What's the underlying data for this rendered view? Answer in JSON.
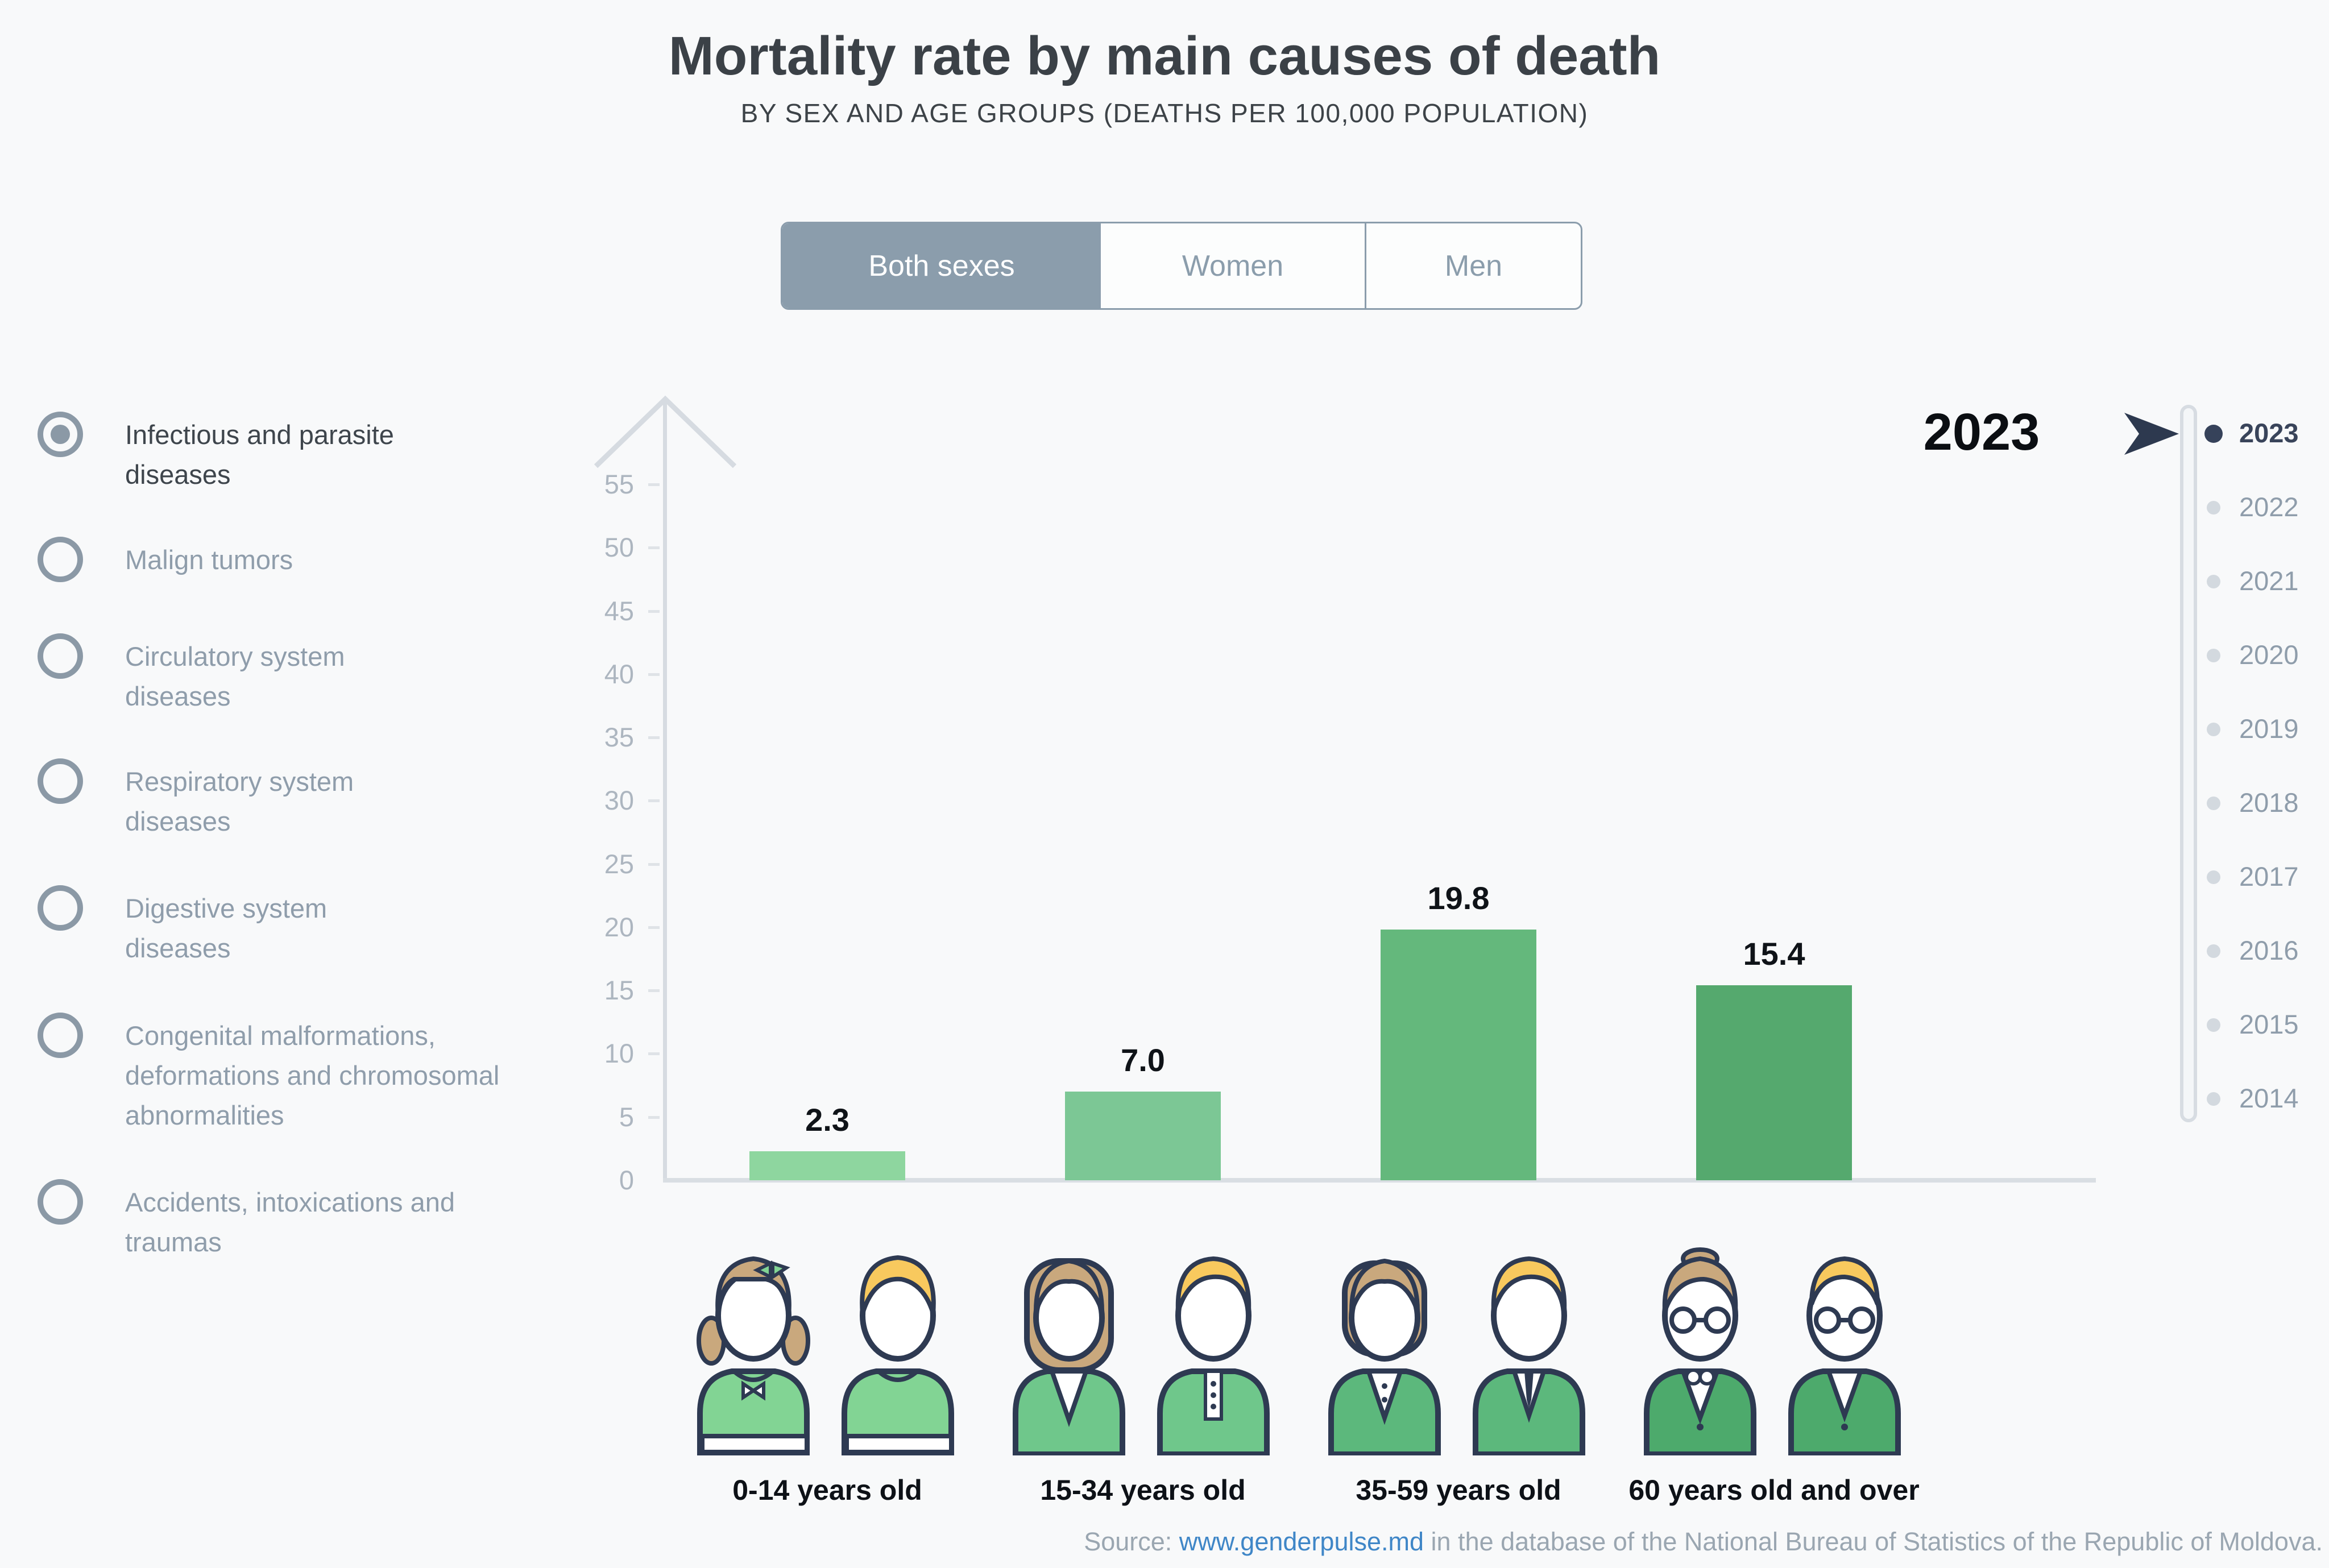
{
  "title": "Mortality rate by main causes of death",
  "subtitle": "BY SEX AND AGE GROUPS (DEATHS PER 100,000 POPULATION)",
  "tabs": [
    {
      "label": "Both sexes",
      "active": true
    },
    {
      "label": "Women",
      "active": false
    },
    {
      "label": "Men",
      "active": false
    }
  ],
  "causes": {
    "items": [
      {
        "label": "Infectious and parasite\ndiseases",
        "selected": true
      },
      {
        "label": "Malign tumors",
        "selected": false
      },
      {
        "label": "Circulatory system\ndiseases",
        "selected": false
      },
      {
        "label": "Respiratory system\ndiseases",
        "selected": false
      },
      {
        "label": "Digestive system\ndiseases",
        "selected": false
      },
      {
        "label": "Congenital malformations,\ndeformations and chromosomal\nabnormalities",
        "selected": false
      },
      {
        "label": "Accidents, intoxications and\ntraumas",
        "selected": false
      }
    ]
  },
  "chart_data": {
    "type": "bar",
    "title": "Mortality rate by main causes of death",
    "subtitle": "BY SEX AND AGE GROUPS (DEATHS PER 100,000 POPULATION)",
    "selected_sex": "Both sexes",
    "selected_cause": "Infectious and parasite diseases",
    "year": "2023",
    "categories": [
      "0-14 years old",
      "15-34 years old",
      "35-59 years old",
      "60 years old and over"
    ],
    "values": [
      2.3,
      7.0,
      19.8,
      15.4
    ],
    "value_labels": [
      "2.3",
      "7.0",
      "19.8",
      "15.4"
    ],
    "ylim": [
      0,
      55
    ],
    "y_ticks": [
      0,
      5,
      10,
      15,
      20,
      25,
      30,
      35,
      40,
      45,
      50,
      55
    ],
    "bar_colors": [
      "#8ed69f",
      "#7cc795",
      "#64b87c",
      "#55a96e"
    ],
    "grid": false,
    "legend": false
  },
  "big_year": "2023",
  "timeline": {
    "active": "2023",
    "years": [
      "2023",
      "2022",
      "2021",
      "2020",
      "2019",
      "2018",
      "2017",
      "2016",
      "2015",
      "2014"
    ]
  },
  "source": {
    "prefix": "Source: ",
    "link": "www.genderpulse.md",
    "suffix": " in the database of the National Bureau of Statistics of the Republic of Moldova."
  },
  "colors": {
    "background": "#f8f9fa",
    "accent_blue_gray": "#8b9dac",
    "dark_text": "#3b4147",
    "muted_text": "#8f9dab",
    "axis": "#d6dbe1",
    "tick_label": "#adb6c0",
    "value_label": "#0f1318",
    "active_year": "#36425a",
    "link_blue": "#3f86c7",
    "icon_outline": "#2e3a52",
    "hair_female": "#c9a87d",
    "hair_male": "#f8c95e"
  }
}
